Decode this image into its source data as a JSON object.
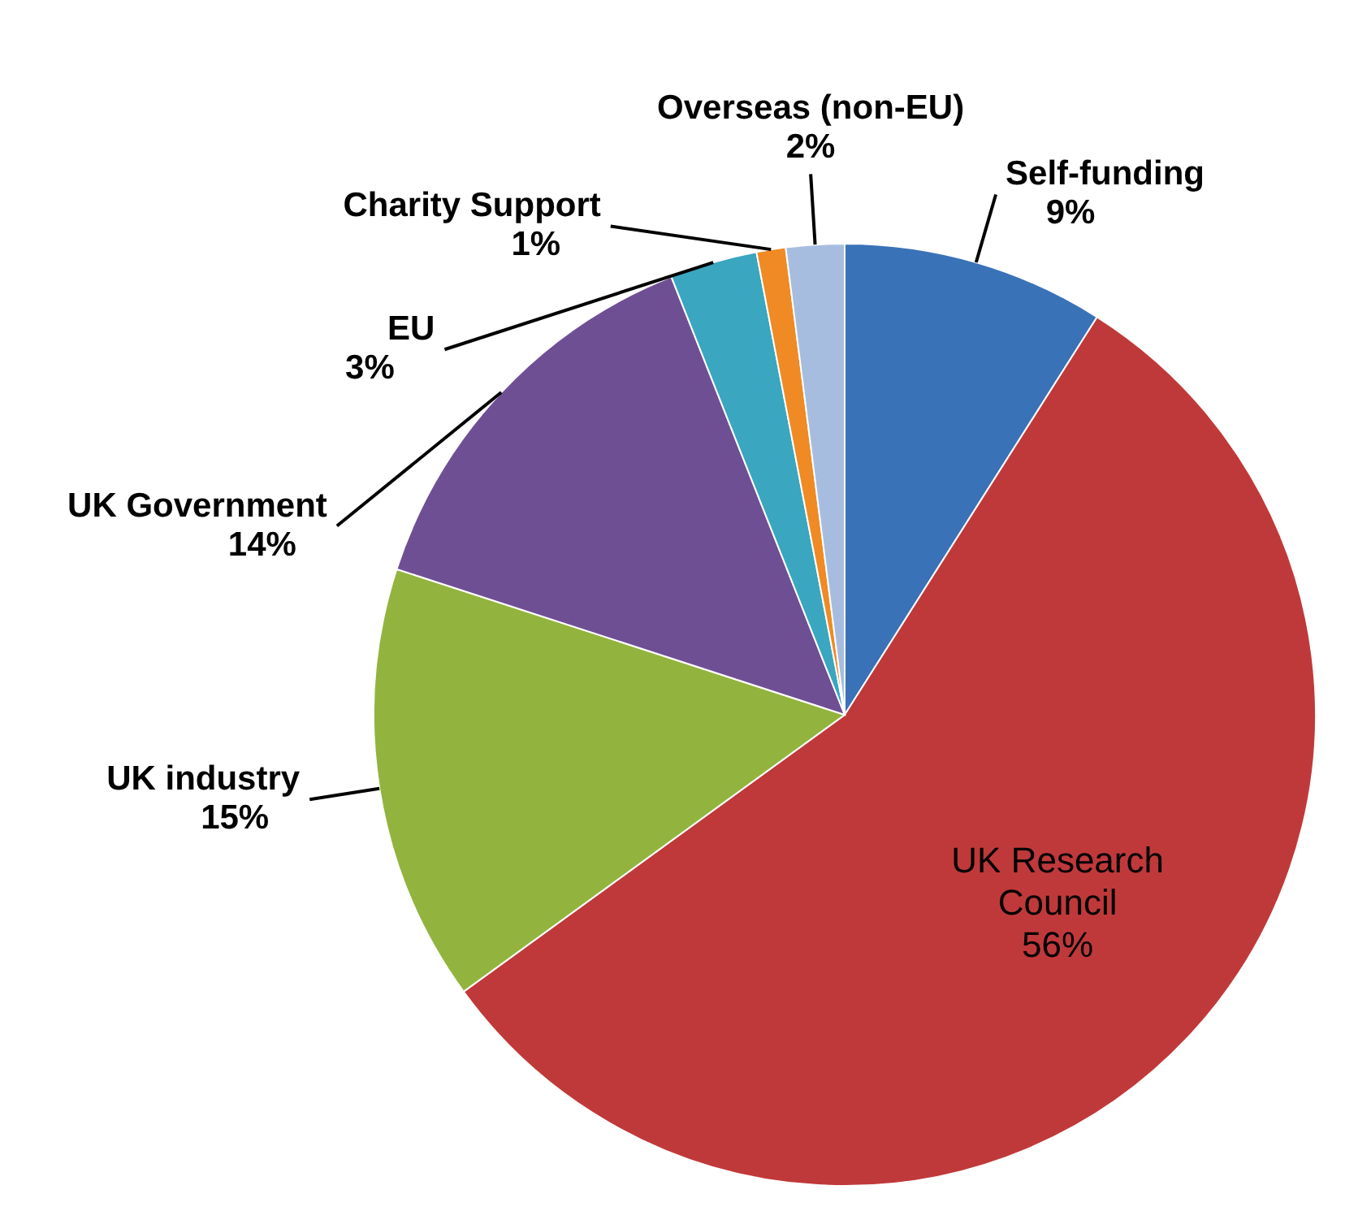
{
  "chart_data": {
    "type": "pie",
    "categories": [
      "Self-funding",
      "UK Research Council",
      "UK industry",
      "UK Government",
      "EU",
      "Charity Support",
      "Overseas (non-EU)"
    ],
    "values": [
      9,
      56,
      15,
      14,
      3,
      1,
      2
    ],
    "value_labels": [
      "9%",
      "56%",
      "15%",
      "14%",
      "3%",
      "1%",
      "2%"
    ],
    "colors": [
      "#3a72b8",
      "#c0393a",
      "#92b43e",
      "#6f4f94",
      "#3aa6c0",
      "#f08a24",
      "#a7bde0"
    ]
  }
}
